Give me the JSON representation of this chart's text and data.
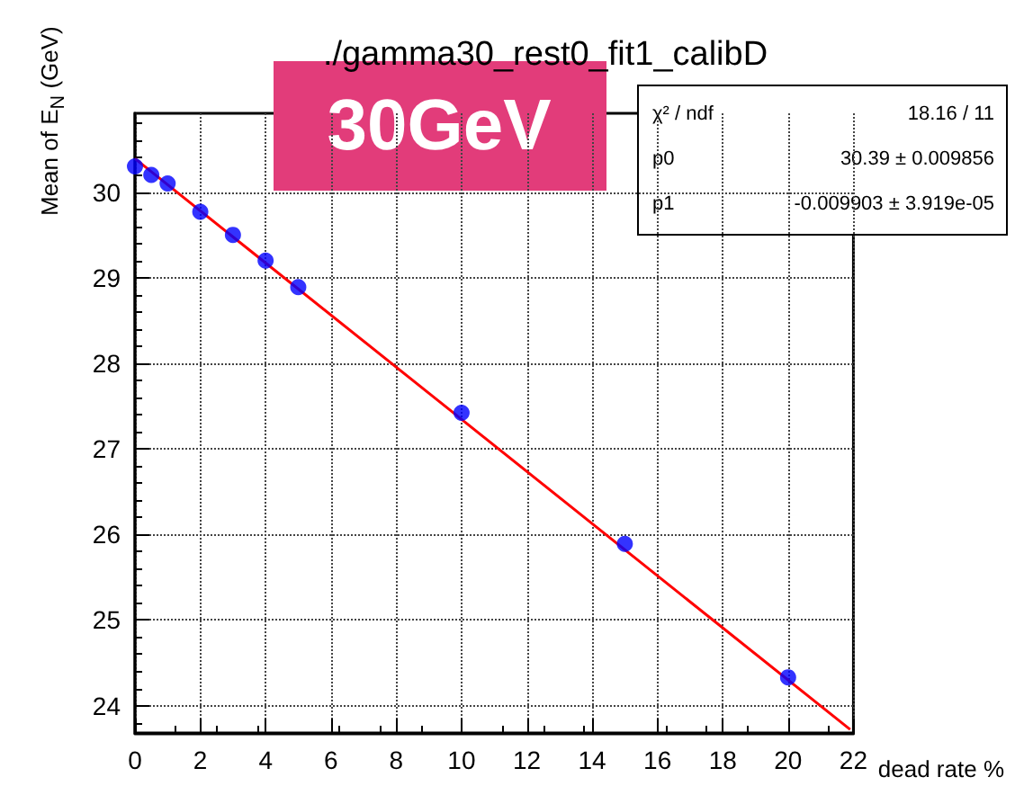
{
  "chart_data": {
    "type": "scatter",
    "title": "./gamma30_rest0_fit1_calibD",
    "xlabel": "dead rate %",
    "ylabel": "Mean of E$_{N}$ (GeV)",
    "annotations": [
      "30GeV",
      "χ² / ndf",
      "18.16 / 11",
      "p0",
      "30.39 ± 0.009856",
      "p1",
      "-0.009903 ± 3.919e-05"
    ],
    "xlim": [
      0,
      22
    ],
    "xticks": [
      0,
      2,
      4,
      6,
      8,
      10,
      12,
      14,
      16,
      18,
      20,
      22
    ],
    "ylim": [
      23.68,
      30.92
    ],
    "yticks": [
      24,
      25,
      26,
      27,
      28,
      29,
      30
    ],
    "grid": true,
    "marker": "circle",
    "series": [
      {
        "color": "#0000ff",
        "x": [
          0,
          0.5,
          1,
          2,
          3,
          4,
          5,
          10,
          15,
          20
        ],
        "values": [
          30.3,
          30.2,
          30.1,
          29.77,
          29.5,
          29.2,
          28.89,
          27.42,
          25.89,
          24.33
        ]
      },
      {
        "type": "line",
        "color": "#ff0000",
        "marker": "none",
        "x": [
          0,
          21.9
        ],
        "values": [
          30.39,
          23.72
        ]
      }
    ]
  }
}
